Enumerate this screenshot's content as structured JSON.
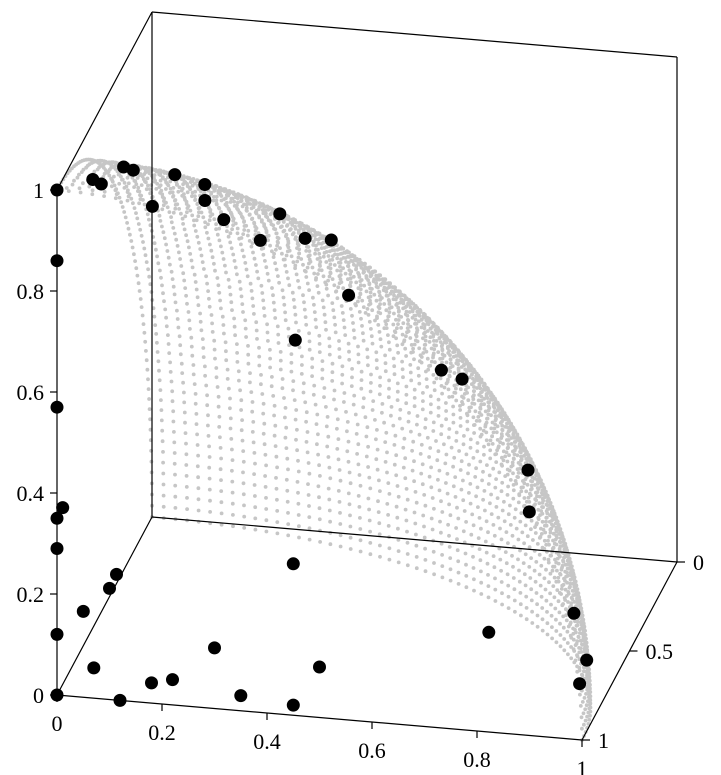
{
  "chart_data": {
    "type": "scatter",
    "projection": "3d",
    "title": "",
    "xlabel": "",
    "ylabel": "",
    "zlabel": "",
    "xlim": [
      0,
      1
    ],
    "ylim": [
      0,
      1
    ],
    "zlim": [
      0,
      1
    ],
    "x_ticks": [
      "0",
      "0.2",
      "0.4",
      "0.6",
      "0.8",
      "1"
    ],
    "y_ticks": [
      "0",
      "0.5",
      "1"
    ],
    "z_ticks": [
      "0",
      "0.2",
      "0.4",
      "0.6",
      "0.8",
      "1"
    ],
    "grid": false,
    "reference_surface": {
      "name": "",
      "shape": "sphere octant x^2 + y^2 + z^2 = 1",
      "color": "#c6c6c6",
      "marker": "dot"
    },
    "series": [
      {
        "name": "",
        "color": "#000000",
        "marker": "filled-circle",
        "points": [
          [
            0.0,
            0.0,
            1.0
          ],
          [
            0.18,
            0.01,
            0.98
          ],
          [
            0.38,
            0.04,
            0.92
          ],
          [
            0.55,
            0.03,
            0.83
          ],
          [
            0.05,
            0.1,
            0.99
          ],
          [
            0.26,
            0.12,
            0.96
          ],
          [
            0.44,
            0.18,
            0.88
          ],
          [
            0.75,
            0.12,
            0.65
          ],
          [
            0.1,
            0.25,
            0.96
          ],
          [
            0.37,
            0.3,
            0.88
          ],
          [
            0.2,
            0.45,
            0.87
          ],
          [
            0.45,
            0.4,
            0.8
          ],
          [
            0.04,
            0.48,
            0.88
          ],
          [
            0.2,
            0.65,
            0.73
          ],
          [
            0.3,
            0.85,
            0.43
          ],
          [
            0.62,
            0.62,
            0.48
          ],
          [
            0.8,
            0.55,
            0.24
          ],
          [
            0.07,
            0.08,
            0.99
          ],
          [
            0.17,
            0.3,
            0.94
          ],
          [
            0.87,
            0.15,
            0.47
          ],
          [
            0.97,
            0.08,
            0.22
          ],
          [
            0.98,
            0.16,
            0.1
          ],
          [
            0.99,
            0.03,
            0.1
          ],
          [
            0.0,
            0.0,
            0.86
          ],
          [
            0.0,
            0.0,
            0.57
          ],
          [
            0.0,
            0.0,
            0.35
          ],
          [
            0.0,
            0.0,
            0.29
          ],
          [
            0.0,
            0.0,
            0.12
          ],
          [
            0.0,
            0.0,
            0.0
          ],
          [
            0.12,
            0.0,
            0.0
          ],
          [
            0.18,
            0.0,
            0.04
          ],
          [
            0.35,
            0.0,
            0.03
          ],
          [
            0.45,
            0.0,
            0.02
          ],
          [
            0.3,
            0.0,
            0.12
          ],
          [
            0.5,
            0.0,
            0.1
          ],
          [
            0.05,
            0.0,
            0.17
          ],
          [
            0.07,
            0.0,
            0.06
          ],
          [
            0.22,
            0.0,
            0.05
          ],
          [
            0.1,
            0.0,
            0.22
          ],
          [
            0.45,
            0.0,
            0.3
          ],
          [
            0.75,
            0.4,
            0.05
          ],
          [
            0.05,
            0.35,
            0.12
          ],
          [
            0.0,
            0.06,
            0.35
          ]
        ]
      }
    ]
  }
}
